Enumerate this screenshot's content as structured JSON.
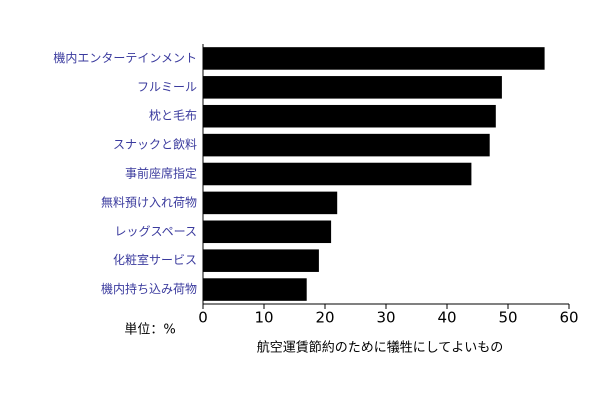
{
  "chart_data": {
    "type": "bar",
    "orientation": "horizontal",
    "xlabel": "航空運賃節約のために犠牲にしてよいもの",
    "unit_label": "単位：%",
    "categories": [
      "機内エンターテインメント",
      "フルミール",
      "枕と毛布",
      "スナックと飲料",
      "事前座席指定",
      "無料預け入れ荷物",
      "レッグスペース",
      "化粧室サービス",
      "機内持ち込み荷物"
    ],
    "values": [
      56,
      49,
      48,
      47,
      44,
      22,
      21,
      19,
      17
    ],
    "color": "#000000",
    "xlim": [
      0,
      60
    ],
    "xticks": [
      0,
      10,
      20,
      30,
      40,
      50,
      60
    ]
  }
}
